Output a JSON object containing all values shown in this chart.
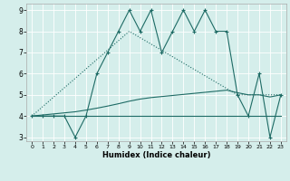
{
  "xlabel": "Humidex (Indice chaleur)",
  "xlim": [
    -0.5,
    23.5
  ],
  "ylim": [
    2.8,
    9.3
  ],
  "yticks": [
    3,
    4,
    5,
    6,
    7,
    8,
    9
  ],
  "xticks": [
    0,
    1,
    2,
    3,
    4,
    5,
    6,
    7,
    8,
    9,
    10,
    11,
    12,
    13,
    14,
    15,
    16,
    17,
    18,
    19,
    20,
    21,
    22,
    23
  ],
  "bg_color": "#d5eeeb",
  "line_color": "#1e6b65",
  "series1_x": [
    0,
    1,
    2,
    3,
    4,
    5,
    6,
    7,
    8,
    9,
    10,
    11,
    12,
    13,
    14,
    15,
    16,
    17,
    18,
    19,
    20,
    21,
    22,
    23
  ],
  "series1_y": [
    4,
    4,
    4,
    4,
    3,
    4,
    6,
    7,
    8,
    9,
    8,
    9,
    7,
    8,
    9,
    8,
    9,
    8,
    8,
    5,
    4,
    6,
    3,
    5
  ],
  "series2_x": [
    0,
    1,
    2,
    3,
    4,
    5,
    6,
    7,
    8,
    9,
    10,
    11,
    12,
    13,
    14,
    15,
    16,
    17,
    18,
    19,
    20,
    21,
    22,
    23
  ],
  "series2_y": [
    4,
    4,
    4,
    4,
    4,
    4,
    4,
    4,
    4,
    4,
    4,
    4,
    4,
    4,
    4,
    4,
    4,
    4,
    4,
    4,
    4,
    4,
    4,
    4
  ],
  "series3_x": [
    0,
    1,
    2,
    3,
    4,
    5,
    6,
    7,
    8,
    9,
    10,
    11,
    12,
    13,
    14,
    15,
    16,
    17,
    18,
    19,
    20,
    21,
    22,
    23
  ],
  "series3_y": [
    4.0,
    4.05,
    4.1,
    4.15,
    4.2,
    4.28,
    4.37,
    4.47,
    4.58,
    4.7,
    4.8,
    4.87,
    4.92,
    4.97,
    5.02,
    5.07,
    5.12,
    5.17,
    5.22,
    5.1,
    5.0,
    5.0,
    4.9,
    5.0
  ],
  "series4_x": [
    0,
    9,
    19,
    23
  ],
  "series4_y": [
    4,
    8,
    5,
    5
  ]
}
